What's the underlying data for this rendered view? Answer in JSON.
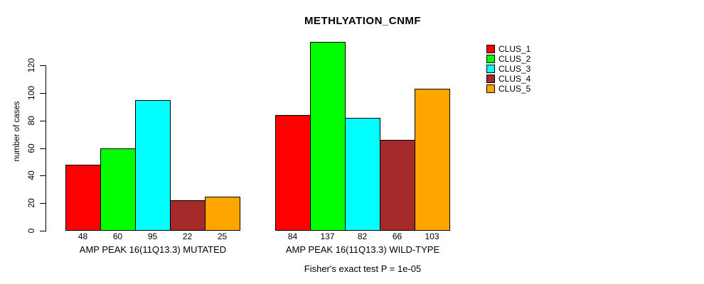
{
  "chart_data": {
    "type": "bar",
    "title": "METHLYATION_CNMF",
    "ylabel": "number of cases",
    "xlabel": "",
    "categories": [
      "AMP PEAK 16(11Q13.3) MUTATED",
      "AMP PEAK 16(11Q13.3) WILD-TYPE"
    ],
    "series": [
      {
        "name": "CLUS_1",
        "color": "#FF0000",
        "values": [
          48,
          84
        ]
      },
      {
        "name": "CLUS_2",
        "color": "#00FF00",
        "values": [
          60,
          137
        ]
      },
      {
        "name": "CLUS_3",
        "color": "#00FFFF",
        "values": [
          95,
          82
        ]
      },
      {
        "name": "CLUS_4",
        "color": "#A52A2A",
        "values": [
          22,
          66
        ]
      },
      {
        "name": "CLUS_5",
        "color": "#FFA500",
        "values": [
          25,
          103
        ]
      }
    ],
    "yticks": [
      0,
      20,
      40,
      60,
      80,
      100,
      120
    ],
    "ylim": [
      0,
      140
    ],
    "grid": false,
    "bar_value_labels_shown": true,
    "bar_border_color": "#000000",
    "legend_position": "right-outside-top",
    "annotation": "Fisher's exact test P = 1e-05"
  }
}
